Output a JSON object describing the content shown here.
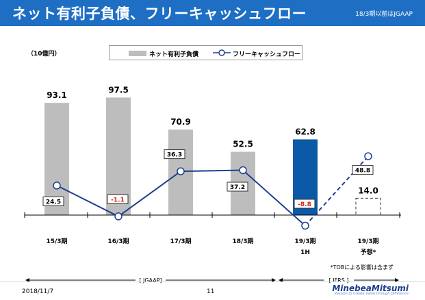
{
  "header": {
    "title": "ネット有利子負債、フリーキャッシュフロー",
    "note": "18/3期以前はJGAAP"
  },
  "footer": {
    "date": "2018/11/7",
    "page": "11",
    "logo": "MinebeaMitsumi",
    "tagline": "Passion to Create Value through Difference"
  },
  "colors": {
    "header": "#1e6fc4",
    "bar": "#bdbdbd",
    "bar_highlight": "#0a5aa8",
    "line": "#1f3f8f",
    "negative_label": "#e0201b"
  },
  "chart_data": {
    "type": "bar",
    "title": "ネット有利子負債、フリーキャッシュフロー",
    "unit": "（10億円）",
    "categories": [
      "15/3期",
      "16/3期",
      "17/3期",
      "18/3期",
      "19/3期\n1H",
      "19/3期\n予想*"
    ],
    "series": [
      {
        "name": "ネット有利子負債",
        "type": "bar",
        "values": [
          93.1,
          97.5,
          70.9,
          52.5,
          62.8,
          14.0
        ],
        "highlight_index": 4,
        "dashed_index": 5
      },
      {
        "name": "フリーキャッシュフロー",
        "type": "line",
        "values": [
          24.5,
          -1.1,
          36.3,
          37.2,
          -8.8,
          48.8
        ],
        "dashed_from_index": 4
      }
    ],
    "ylim": [
      -10,
      110
    ],
    "annotation": "*TOBによる影響は含まず",
    "periods": [
      {
        "label": "[ JGAAP]",
        "from": 0,
        "to": 3
      },
      {
        "label": "[ IFRS ]",
        "from": 4,
        "to": 5
      }
    ]
  }
}
